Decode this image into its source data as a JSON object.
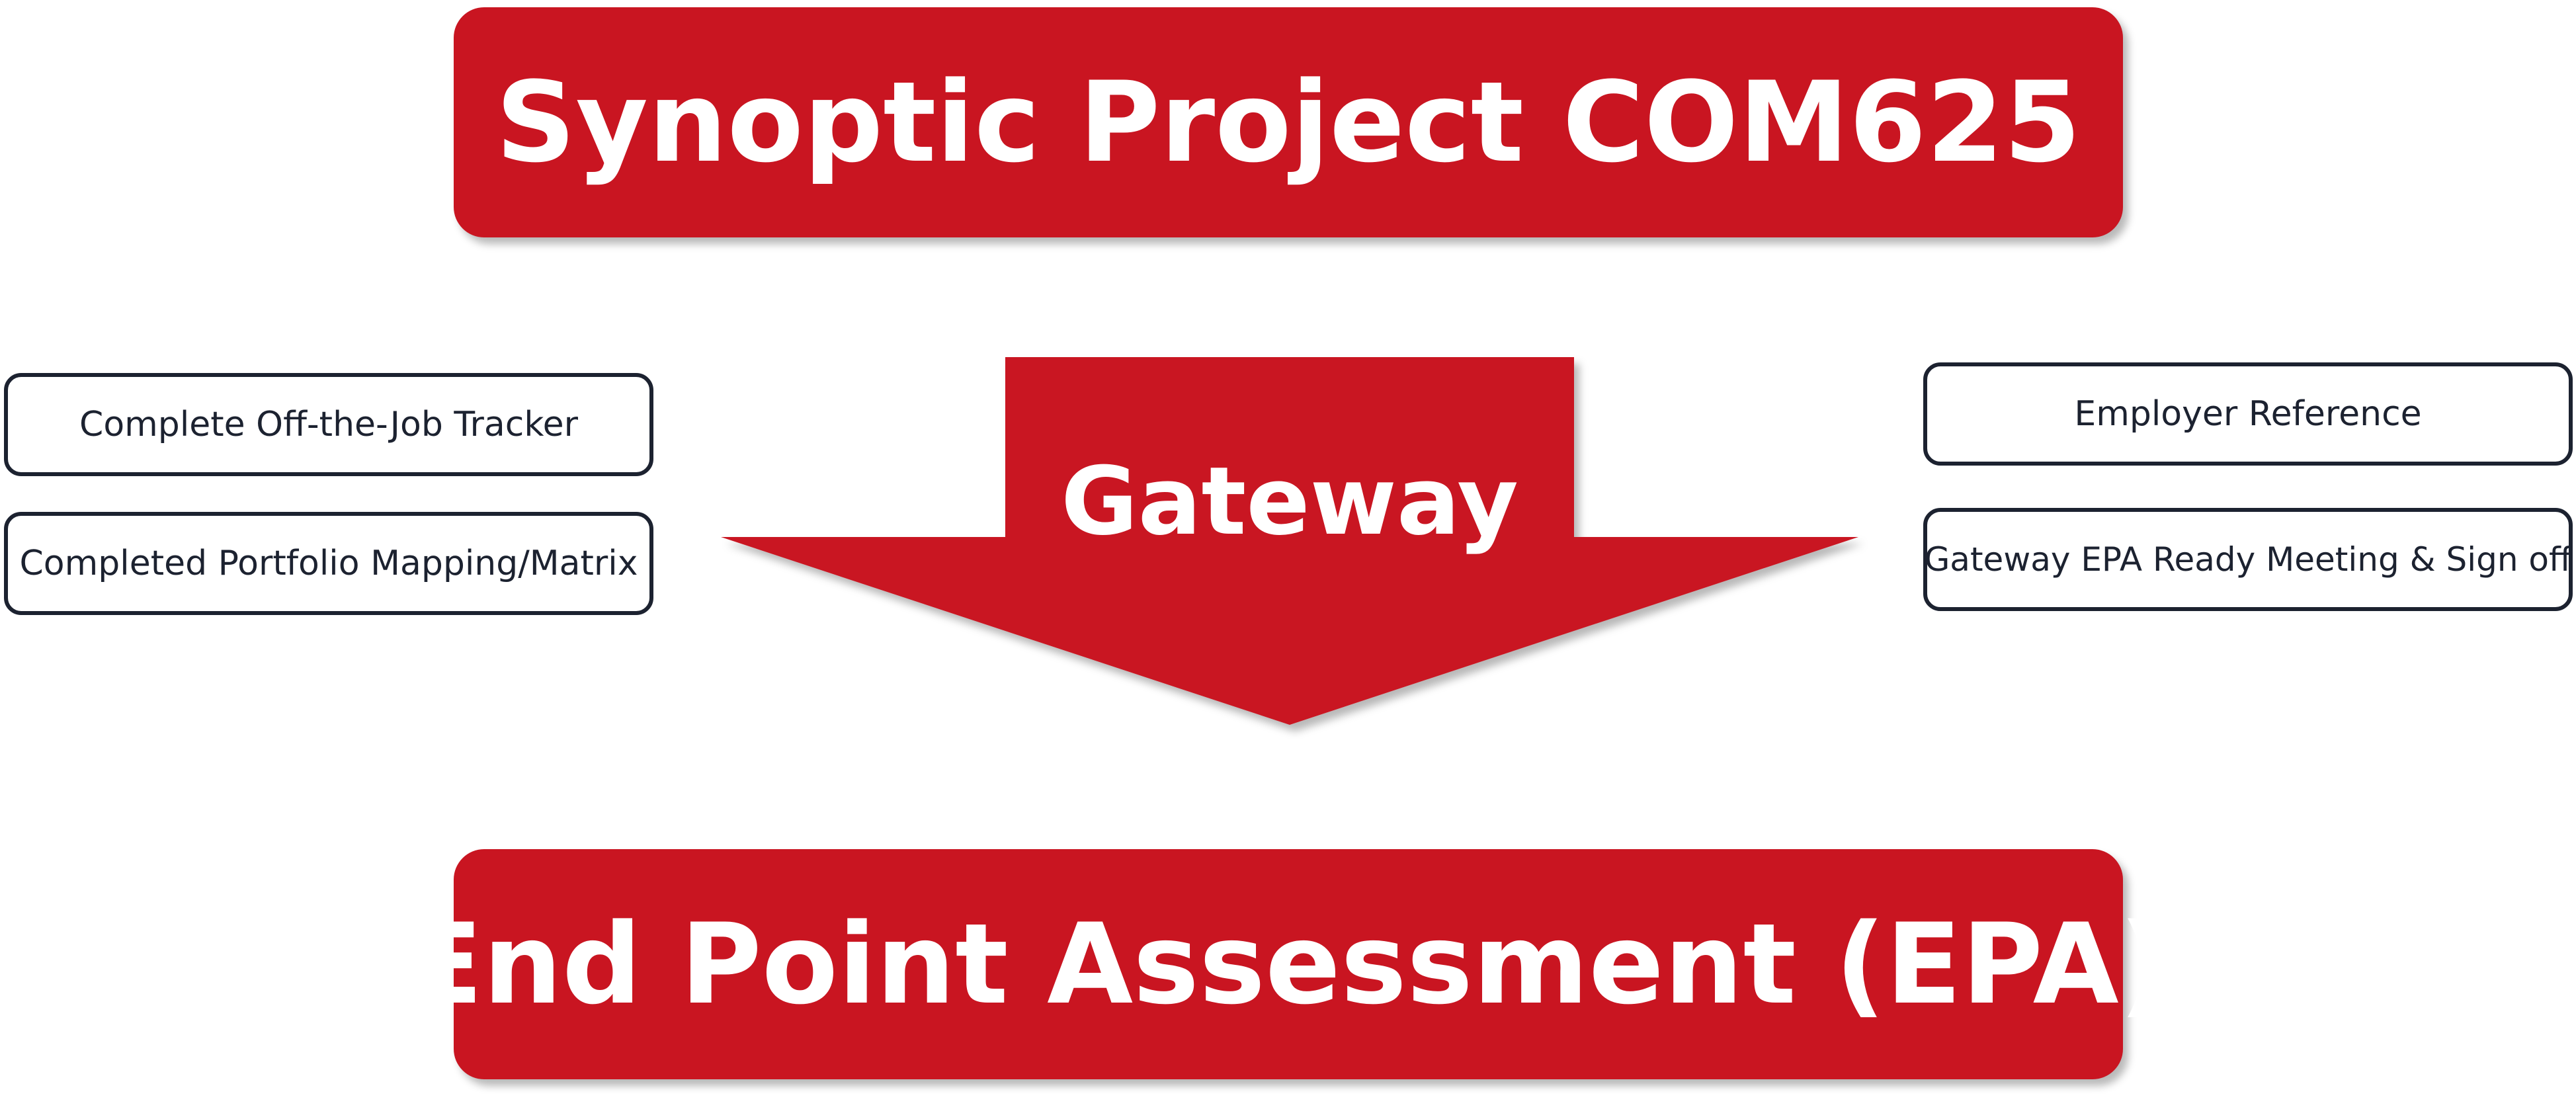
{
  "title": "Synoptic Project COM625",
  "gateway": {
    "label": "Gateway"
  },
  "left_items": [
    "Complete Off-the-Job Tracker",
    "Completed Portfolio Mapping/Matrix"
  ],
  "right_items": [
    "Employer Reference",
    "Gateway EPA Ready Meeting & Sign off"
  ],
  "outcome": "End Point Assessment (EPA)",
  "colors": {
    "accent": "#c91521",
    "box_border": "#1c2230",
    "text_light": "#ffffff"
  }
}
